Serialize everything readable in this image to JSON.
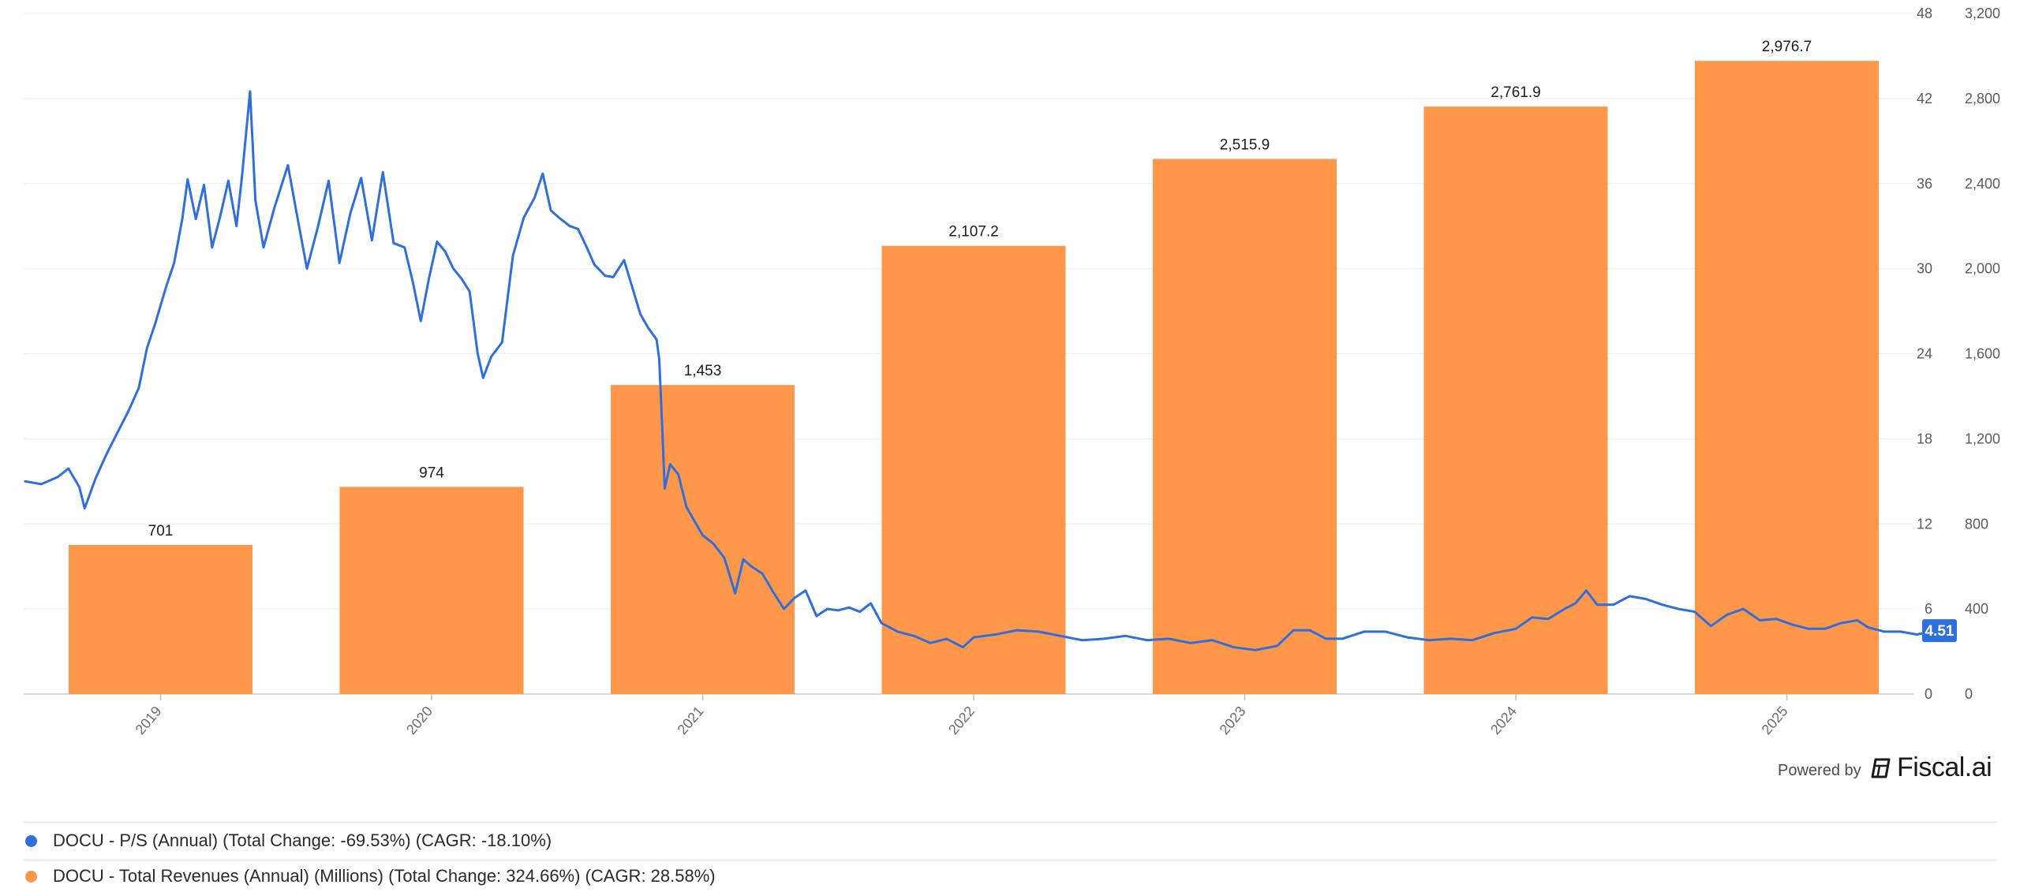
{
  "colors": {
    "ps_line": "#2f6fdb",
    "revenue_bar": "#ff974a",
    "grid": "#eeeeee",
    "badge": "#2f6fdb"
  },
  "brand": {
    "powered_by": "Powered by",
    "name": "Fiscal.ai",
    "icon": "fiscal-ai-logo-icon"
  },
  "legend": [
    {
      "label": "DOCU - P/S (Annual) (Total Change: -69.53%) (CAGR: -18.10%)",
      "color": "#2f6fdb"
    },
    {
      "label": "DOCU - Total Revenues (Annual) (Millions) (Total Change: 324.66%) (CAGR: 28.58%)",
      "color": "#ff974a"
    }
  ],
  "chart_data": {
    "type": "bar",
    "categories": [
      "2019",
      "2020",
      "2021",
      "2022",
      "2023",
      "2024",
      "2025"
    ],
    "series": [
      {
        "name": "DOCU - Total Revenues (Annual) (Millions)",
        "type": "bar",
        "axis": "right",
        "values": [
          701,
          974,
          1453,
          2107.2,
          2515.9,
          2761.9,
          2976.7
        ],
        "labels": [
          "701",
          "974",
          "1,453",
          "2,107.2",
          "2,515.9",
          "2,761.9",
          "2,976.7"
        ]
      },
      {
        "name": "DOCU - P/S (Annual)",
        "type": "line",
        "axis": "left",
        "x_range": [
          2018.5,
          2025.6
        ],
        "points": [
          [
            2018.5,
            15.0
          ],
          [
            2018.56,
            14.8
          ],
          [
            2018.62,
            15.3
          ],
          [
            2018.66,
            15.9
          ],
          [
            2018.7,
            14.6
          ],
          [
            2018.72,
            13.1
          ],
          [
            2018.76,
            15.2
          ],
          [
            2018.8,
            16.9
          ],
          [
            2018.84,
            18.4
          ],
          [
            2018.88,
            19.9
          ],
          [
            2018.92,
            21.6
          ],
          [
            2018.95,
            24.4
          ],
          [
            2018.98,
            26.1
          ],
          [
            2019.02,
            28.7
          ],
          [
            2019.05,
            30.4
          ],
          [
            2019.08,
            33.5
          ],
          [
            2019.1,
            36.3
          ],
          [
            2019.13,
            33.5
          ],
          [
            2019.16,
            35.9
          ],
          [
            2019.19,
            31.5
          ],
          [
            2019.22,
            33.7
          ],
          [
            2019.25,
            36.2
          ],
          [
            2019.28,
            33.0
          ],
          [
            2019.3,
            36.4
          ],
          [
            2019.33,
            42.5
          ],
          [
            2019.35,
            34.8
          ],
          [
            2019.38,
            31.5
          ],
          [
            2019.42,
            34.3
          ],
          [
            2019.47,
            37.3
          ],
          [
            2019.5,
            34.1
          ],
          [
            2019.54,
            30.0
          ],
          [
            2019.58,
            32.9
          ],
          [
            2019.62,
            36.2
          ],
          [
            2019.66,
            30.4
          ],
          [
            2019.7,
            33.9
          ],
          [
            2019.74,
            36.4
          ],
          [
            2019.78,
            32.0
          ],
          [
            2019.82,
            36.8
          ],
          [
            2019.86,
            31.8
          ],
          [
            2019.9,
            31.5
          ],
          [
            2019.93,
            29.1
          ],
          [
            2019.96,
            26.3
          ],
          [
            2019.99,
            29.3
          ],
          [
            2020.02,
            31.9
          ],
          [
            2020.05,
            31.2
          ],
          [
            2020.08,
            30.0
          ],
          [
            2020.11,
            29.3
          ],
          [
            2020.14,
            28.4
          ],
          [
            2020.17,
            24.0
          ],
          [
            2020.19,
            22.3
          ],
          [
            2020.22,
            23.8
          ],
          [
            2020.26,
            24.8
          ],
          [
            2020.3,
            30.9
          ],
          [
            2020.34,
            33.6
          ],
          [
            2020.38,
            35.0
          ],
          [
            2020.41,
            36.7
          ],
          [
            2020.44,
            34.1
          ],
          [
            2020.47,
            33.6
          ],
          [
            2020.51,
            33.0
          ],
          [
            2020.54,
            32.8
          ],
          [
            2020.57,
            31.6
          ],
          [
            2020.6,
            30.3
          ],
          [
            2020.64,
            29.5
          ],
          [
            2020.67,
            29.4
          ],
          [
            2020.71,
            30.6
          ],
          [
            2020.74,
            28.7
          ],
          [
            2020.77,
            26.8
          ],
          [
            2020.8,
            25.8
          ],
          [
            2020.83,
            25.0
          ],
          [
            2020.84,
            23.6
          ],
          [
            2020.85,
            19.1
          ],
          [
            2020.86,
            14.5
          ],
          [
            2020.88,
            16.2
          ],
          [
            2020.91,
            15.5
          ],
          [
            2020.94,
            13.2
          ],
          [
            2020.97,
            12.2
          ],
          [
            2021.0,
            11.2
          ],
          [
            2021.04,
            10.6
          ],
          [
            2021.08,
            9.6
          ],
          [
            2021.12,
            7.1
          ],
          [
            2021.15,
            9.5
          ],
          [
            2021.18,
            9.0
          ],
          [
            2021.22,
            8.5
          ],
          [
            2021.26,
            7.2
          ],
          [
            2021.3,
            6.0
          ],
          [
            2021.34,
            6.8
          ],
          [
            2021.38,
            7.3
          ],
          [
            2021.42,
            5.5
          ],
          [
            2021.46,
            6.0
          ],
          [
            2021.5,
            5.9
          ],
          [
            2021.54,
            6.1
          ],
          [
            2021.58,
            5.8
          ],
          [
            2021.62,
            6.4
          ],
          [
            2021.66,
            5.0
          ],
          [
            2021.72,
            4.4
          ],
          [
            2021.78,
            4.1
          ],
          [
            2021.84,
            3.6
          ],
          [
            2021.9,
            3.9
          ],
          [
            2021.96,
            3.3
          ],
          [
            2022.0,
            4.0
          ],
          [
            2022.08,
            4.2
          ],
          [
            2022.16,
            4.5
          ],
          [
            2022.24,
            4.4
          ],
          [
            2022.32,
            4.1
          ],
          [
            2022.4,
            3.8
          ],
          [
            2022.48,
            3.9
          ],
          [
            2022.56,
            4.1
          ],
          [
            2022.64,
            3.8
          ],
          [
            2022.72,
            3.9
          ],
          [
            2022.8,
            3.6
          ],
          [
            2022.88,
            3.8
          ],
          [
            2022.96,
            3.3
          ],
          [
            2023.04,
            3.1
          ],
          [
            2023.12,
            3.4
          ],
          [
            2023.18,
            4.5
          ],
          [
            2023.24,
            4.5
          ],
          [
            2023.3,
            3.9
          ],
          [
            2023.36,
            3.9
          ],
          [
            2023.44,
            4.4
          ],
          [
            2023.52,
            4.4
          ],
          [
            2023.6,
            4.0
          ],
          [
            2023.68,
            3.8
          ],
          [
            2023.76,
            3.9
          ],
          [
            2023.84,
            3.8
          ],
          [
            2023.92,
            4.3
          ],
          [
            2024.0,
            4.6
          ],
          [
            2024.06,
            5.4
          ],
          [
            2024.12,
            5.3
          ],
          [
            2024.18,
            6.0
          ],
          [
            2024.22,
            6.4
          ],
          [
            2024.26,
            7.3
          ],
          [
            2024.3,
            6.3
          ],
          [
            2024.36,
            6.3
          ],
          [
            2024.42,
            6.9
          ],
          [
            2024.48,
            6.7
          ],
          [
            2024.54,
            6.3
          ],
          [
            2024.6,
            6.0
          ],
          [
            2024.66,
            5.8
          ],
          [
            2024.72,
            4.8
          ],
          [
            2024.78,
            5.6
          ],
          [
            2024.84,
            6.0
          ],
          [
            2024.9,
            5.2
          ],
          [
            2024.96,
            5.3
          ],
          [
            2025.02,
            4.9
          ],
          [
            2025.08,
            4.6
          ],
          [
            2025.14,
            4.6
          ],
          [
            2025.2,
            5.0
          ],
          [
            2025.26,
            5.2
          ],
          [
            2025.3,
            4.7
          ],
          [
            2025.36,
            4.4
          ],
          [
            2025.42,
            4.4
          ],
          [
            2025.48,
            4.2
          ],
          [
            2025.53,
            4.4
          ],
          [
            2025.58,
            4.5
          ]
        ],
        "last_value": "4.51"
      }
    ],
    "y_left": {
      "min": 0,
      "max": 48,
      "ticks": [
        "0",
        "6",
        "12",
        "18",
        "24",
        "30",
        "36",
        "42",
        "48"
      ]
    },
    "y_right": {
      "min": 0,
      "max": 3200,
      "ticks": [
        "0",
        "400",
        "800",
        "1,200",
        "1,600",
        "2,000",
        "2,400",
        "2,800",
        "3,200"
      ]
    },
    "grid": true,
    "legend_position": "bottom"
  }
}
